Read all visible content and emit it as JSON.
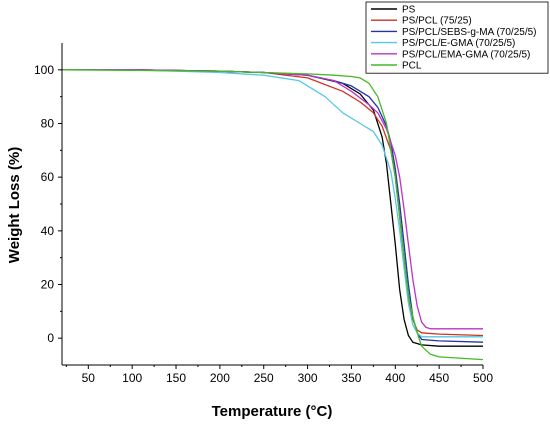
{
  "chart_data": {
    "type": "line",
    "xlabel": "Temperature (°C)",
    "ylabel": "Weight Loss (%)",
    "xlim": [
      20,
      500
    ],
    "ylim": [
      -10,
      110
    ],
    "xticks": [
      50,
      100,
      150,
      200,
      250,
      300,
      350,
      400,
      450,
      500
    ],
    "yticks": [
      0,
      20,
      40,
      60,
      80,
      100
    ],
    "legend_position": "top-right",
    "series": [
      {
        "name": "PS",
        "color": "#000000",
        "x": [
          20,
          100,
          200,
          250,
          300,
          340,
          360,
          375,
          385,
          390,
          395,
          400,
          405,
          410,
          415,
          420,
          430,
          450,
          500
        ],
        "y": [
          100,
          100,
          99.5,
          99,
          98,
          95,
          91,
          85,
          75,
          65,
          50,
          35,
          18,
          7,
          1,
          -1.5,
          -2.5,
          -3,
          -3
        ]
      },
      {
        "name": "PS/PCL (75/25)",
        "color": "#cc3322",
        "x": [
          20,
          100,
          200,
          250,
          300,
          340,
          360,
          375,
          385,
          395,
          400,
          405,
          410,
          415,
          420,
          425,
          430,
          450,
          500
        ],
        "y": [
          100,
          100,
          99.5,
          99,
          97,
          92,
          88,
          84,
          79,
          70,
          60,
          45,
          30,
          15,
          7,
          3,
          2,
          1.5,
          1
        ]
      },
      {
        "name": "PS/PCL/SEBS-g-MA (70/25/5)",
        "color": "#2233aa",
        "x": [
          20,
          100,
          200,
          250,
          300,
          330,
          350,
          370,
          380,
          390,
          395,
          400,
          405,
          410,
          415,
          420,
          425,
          430,
          450,
          500
        ],
        "y": [
          100,
          100,
          99.5,
          99,
          98,
          96,
          94,
          90,
          86,
          79,
          73,
          63,
          50,
          35,
          20,
          8,
          2,
          -0.5,
          -1,
          -1.5
        ]
      },
      {
        "name": "PS/PCL/E-GMA (70/25/5)",
        "color": "#55c8e6",
        "x": [
          20,
          100,
          200,
          250,
          290,
          320,
          340,
          360,
          375,
          385,
          395,
          400,
          405,
          410,
          415,
          420,
          425,
          430,
          450,
          500
        ],
        "y": [
          100,
          100,
          99,
          98,
          96,
          90,
          84,
          80,
          77,
          72,
          62,
          52,
          40,
          26,
          13,
          5,
          2,
          0.5,
          0.5,
          0.5
        ]
      },
      {
        "name": "PS/PCL/EMA-GMA (70/25/5)",
        "color": "#bb33cc",
        "x": [
          20,
          100,
          200,
          250,
          300,
          330,
          350,
          370,
          380,
          390,
          400,
          405,
          410,
          415,
          420,
          425,
          430,
          435,
          440,
          450,
          500
        ],
        "y": [
          100,
          100,
          99.5,
          99,
          98,
          96,
          92,
          87,
          84,
          78,
          68,
          60,
          48,
          35,
          22,
          12,
          6,
          4,
          3.5,
          3.5,
          3.5
        ]
      },
      {
        "name": "PCL",
        "color": "#44bb22",
        "x": [
          20,
          100,
          200,
          250,
          300,
          330,
          350,
          360,
          370,
          380,
          390,
          400,
          405,
          410,
          415,
          420,
          425,
          430,
          440,
          450,
          500
        ],
        "y": [
          100,
          99.8,
          99.5,
          99,
          98.5,
          98,
          97.5,
          97,
          95,
          90,
          80,
          60,
          45,
          30,
          16,
          8,
          2,
          -3,
          -6,
          -7,
          -8
        ]
      }
    ]
  }
}
